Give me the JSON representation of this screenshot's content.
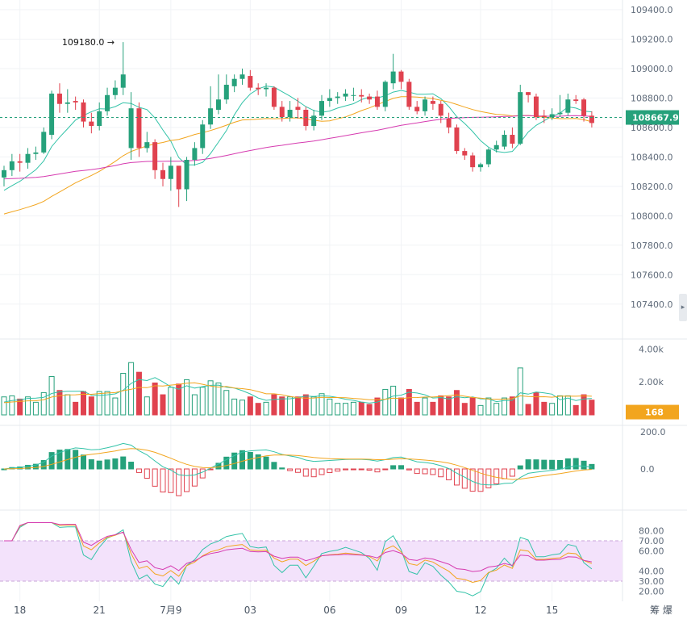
{
  "chart_data": {
    "type": "candlestick",
    "title": "",
    "price_axis": {
      "min": 107300,
      "max": 109400,
      "ticks": [
        "109400.0",
        "109200.0",
        "109000.0",
        "108800.0",
        "108600.0",
        "108400.0",
        "108200.0",
        "108000.0",
        "107800.0",
        "107600.0",
        "107400.0"
      ],
      "current_price_label": "108667.9",
      "current_price": 108667.9
    },
    "x_labels": [
      {
        "label": "18",
        "i": 2
      },
      {
        "label": "21",
        "i": 12
      },
      {
        "label": "7月9",
        "i": 21
      },
      {
        "label": "03",
        "i": 31
      },
      {
        "label": "06",
        "i": 41
      },
      {
        "label": "09",
        "i": 50
      },
      {
        "label": "12",
        "i": 60
      },
      {
        "label": "15",
        "i": 69
      }
    ],
    "max_annotation": {
      "label": "109180.0 →",
      "i": 14,
      "value": 109180
    },
    "candles": {
      "open": [
        108260,
        108310,
        108370,
        108360,
        108420,
        108430,
        108550,
        108830,
        108760,
        108780,
        108770,
        108640,
        108610,
        108710,
        108820,
        108870,
        108460,
        108730,
        108460,
        108500,
        108310,
        108250,
        108340,
        108180,
        108380,
        108460,
        108620,
        108720,
        108790,
        108880,
        108930,
        108950,
        108870,
        108860,
        108870,
        108740,
        108670,
        108740,
        108720,
        108610,
        108680,
        108780,
        108800,
        108810,
        108820,
        108820,
        108810,
        108810,
        108740,
        108900,
        108980,
        108910,
        108740,
        108710,
        108780,
        108760,
        108660,
        108600,
        108440,
        108410,
        108330,
        108350,
        108450,
        108470,
        108550,
        108490,
        108840,
        108810,
        108680,
        108670,
        108690,
        108700,
        108790,
        108790,
        108680
      ],
      "close": [
        108310,
        108370,
        108360,
        108420,
        108430,
        108570,
        108830,
        108760,
        108770,
        108770,
        108640,
        108610,
        108710,
        108820,
        108870,
        108960,
        108730,
        108460,
        108500,
        108310,
        108250,
        108340,
        108180,
        108380,
        108460,
        108620,
        108730,
        108790,
        108890,
        108930,
        108960,
        108870,
        108860,
        108870,
        108740,
        108670,
        108720,
        108720,
        108610,
        108680,
        108780,
        108800,
        108810,
        108830,
        108820,
        108810,
        108790,
        108740,
        108910,
        108980,
        108910,
        108740,
        108710,
        108790,
        108760,
        108680,
        108600,
        108440,
        108410,
        108330,
        108350,
        108450,
        108480,
        108550,
        108490,
        108840,
        108820,
        108670,
        108670,
        108690,
        108700,
        108790,
        108780,
        108680,
        108630
      ],
      "high": [
        108340,
        108420,
        108420,
        108460,
        108470,
        108600,
        108850,
        108900,
        108860,
        108810,
        108790,
        108700,
        108770,
        108870,
        108920,
        109180,
        108840,
        108770,
        108570,
        108520,
        108360,
        108400,
        108320,
        108400,
        108500,
        108650,
        108880,
        108960,
        108960,
        108960,
        109000,
        108990,
        108900,
        108900,
        108880,
        108780,
        108780,
        108800,
        108740,
        108720,
        108820,
        108860,
        108840,
        108860,
        108870,
        108860,
        108830,
        108850,
        108920,
        109100,
        108990,
        108930,
        108780,
        108810,
        108810,
        108780,
        108700,
        108620,
        108460,
        108430,
        108360,
        108460,
        108510,
        108580,
        108600,
        108890,
        108840,
        108830,
        108720,
        108730,
        108820,
        108830,
        108820,
        108800,
        108710
      ],
      "low": [
        108200,
        108270,
        108300,
        108320,
        108380,
        108420,
        108520,
        108700,
        108700,
        108720,
        108600,
        108560,
        108580,
        108680,
        108790,
        108820,
        108380,
        108400,
        108430,
        108250,
        108200,
        108170,
        108060,
        108100,
        108340,
        108420,
        108590,
        108690,
        108760,
        108840,
        108890,
        108850,
        108820,
        108810,
        108720,
        108640,
        108640,
        108660,
        108580,
        108580,
        108650,
        108740,
        108760,
        108780,
        108780,
        108770,
        108760,
        108720,
        108710,
        108860,
        108860,
        108720,
        108690,
        108680,
        108720,
        108630,
        108560,
        108420,
        108380,
        108300,
        108300,
        108330,
        108430,
        108450,
        108460,
        108480,
        108770,
        108650,
        108630,
        108650,
        108670,
        108680,
        108760,
        108640,
        108600
      ]
    },
    "volume_panel": {
      "ticks": [
        "4.00k",
        "2.00k"
      ],
      "tick_values": [
        4000,
        2000
      ],
      "current_label": "168",
      "current_value": 168
    },
    "macd_panel": {
      "ticks": [
        "200.0",
        "0.0"
      ],
      "tick_values": [
        200,
        0
      ]
    },
    "rsi_panel": {
      "ticks": [
        "80.00",
        "70.00",
        "60.00",
        "40.00",
        "30.00",
        "20.00"
      ],
      "tick_values": [
        80,
        70,
        60,
        40,
        30,
        20
      ],
      "band": [
        30,
        70
      ]
    },
    "colors": {
      "up": "#26a17b",
      "down": "#e0424f",
      "ma1": "#33c3a8",
      "ma2": "#f2a51e",
      "ma3": "#d63bb0",
      "price_line": "#26a17b",
      "rsi_band": "#f3e2fb"
    }
  },
  "ui": {
    "right_corner_label": "筹 爆",
    "scroll_handle": "▸"
  }
}
